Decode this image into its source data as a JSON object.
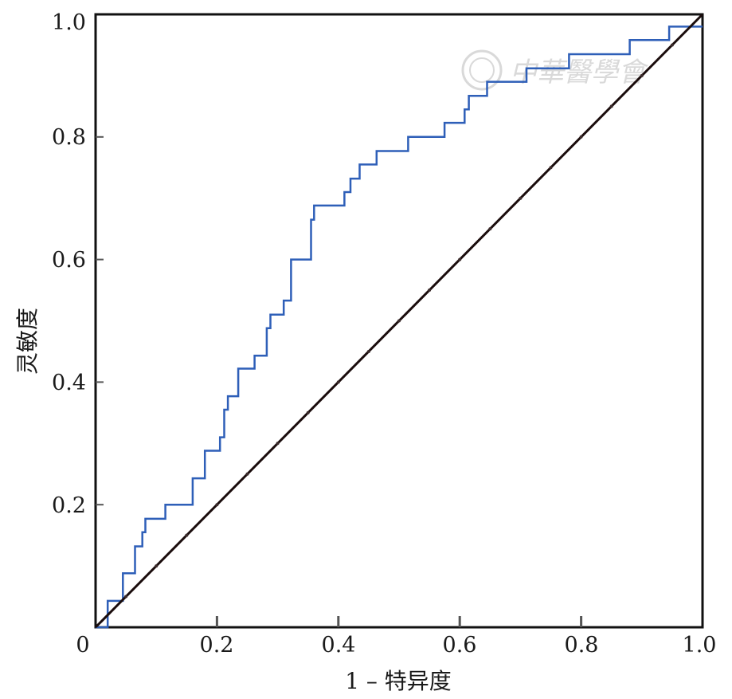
{
  "chart_data": {
    "type": "line",
    "title": "",
    "xlabel": "1 – 特异度",
    "ylabel": "灵敏度",
    "xlim": [
      0,
      1
    ],
    "ylim": [
      0,
      1
    ],
    "x_tick_labels": [
      "0",
      "0.2",
      "0.4",
      "0.6",
      "0.8",
      "1.0"
    ],
    "y_tick_labels": [
      "0.2",
      "0.4",
      "0.6",
      "0.8",
      "1.0"
    ],
    "grid": false,
    "legend": "none",
    "series": [
      {
        "color": "#2e5fb8",
        "x": [
          0,
          0.02,
          0.02,
          0.045,
          0.045,
          0.065,
          0.065,
          0.077,
          0.077,
          0.082,
          0.082,
          0.115,
          0.115,
          0.16,
          0.16,
          0.18,
          0.18,
          0.205,
          0.205,
          0.212,
          0.212,
          0.218,
          0.218,
          0.235,
          0.235,
          0.262,
          0.262,
          0.282,
          0.282,
          0.288,
          0.288,
          0.31,
          0.31,
          0.322,
          0.322,
          0.355,
          0.355,
          0.36,
          0.36,
          0.41,
          0.41,
          0.42,
          0.42,
          0.435,
          0.435,
          0.463,
          0.463,
          0.515,
          0.515,
          0.575,
          0.575,
          0.608,
          0.608,
          0.615,
          0.615,
          0.645,
          0.645,
          0.71,
          0.71,
          0.78,
          0.78,
          0.88,
          0.88,
          0.945,
          0.945,
          1.0
        ],
        "y": [
          0,
          0,
          0.043,
          0.043,
          0.088,
          0.088,
          0.132,
          0.132,
          0.155,
          0.155,
          0.177,
          0.177,
          0.2,
          0.2,
          0.243,
          0.243,
          0.288,
          0.288,
          0.31,
          0.31,
          0.355,
          0.355,
          0.377,
          0.377,
          0.422,
          0.422,
          0.443,
          0.443,
          0.488,
          0.488,
          0.51,
          0.51,
          0.533,
          0.533,
          0.6,
          0.6,
          0.665,
          0.665,
          0.688,
          0.688,
          0.71,
          0.71,
          0.732,
          0.732,
          0.755,
          0.755,
          0.777,
          0.777,
          0.8,
          0.8,
          0.823,
          0.823,
          0.845,
          0.845,
          0.867,
          0.867,
          0.89,
          0.89,
          0.912,
          0.912,
          0.935,
          0.935,
          0.958,
          0.958,
          0.98,
          0.98
        ]
      },
      {
        "color": "#1a0c0c",
        "x": [
          0,
          1
        ],
        "y": [
          0,
          1
        ]
      }
    ]
  },
  "watermark": {
    "text": "中華醫學會",
    "color": "#d9d9d9"
  }
}
